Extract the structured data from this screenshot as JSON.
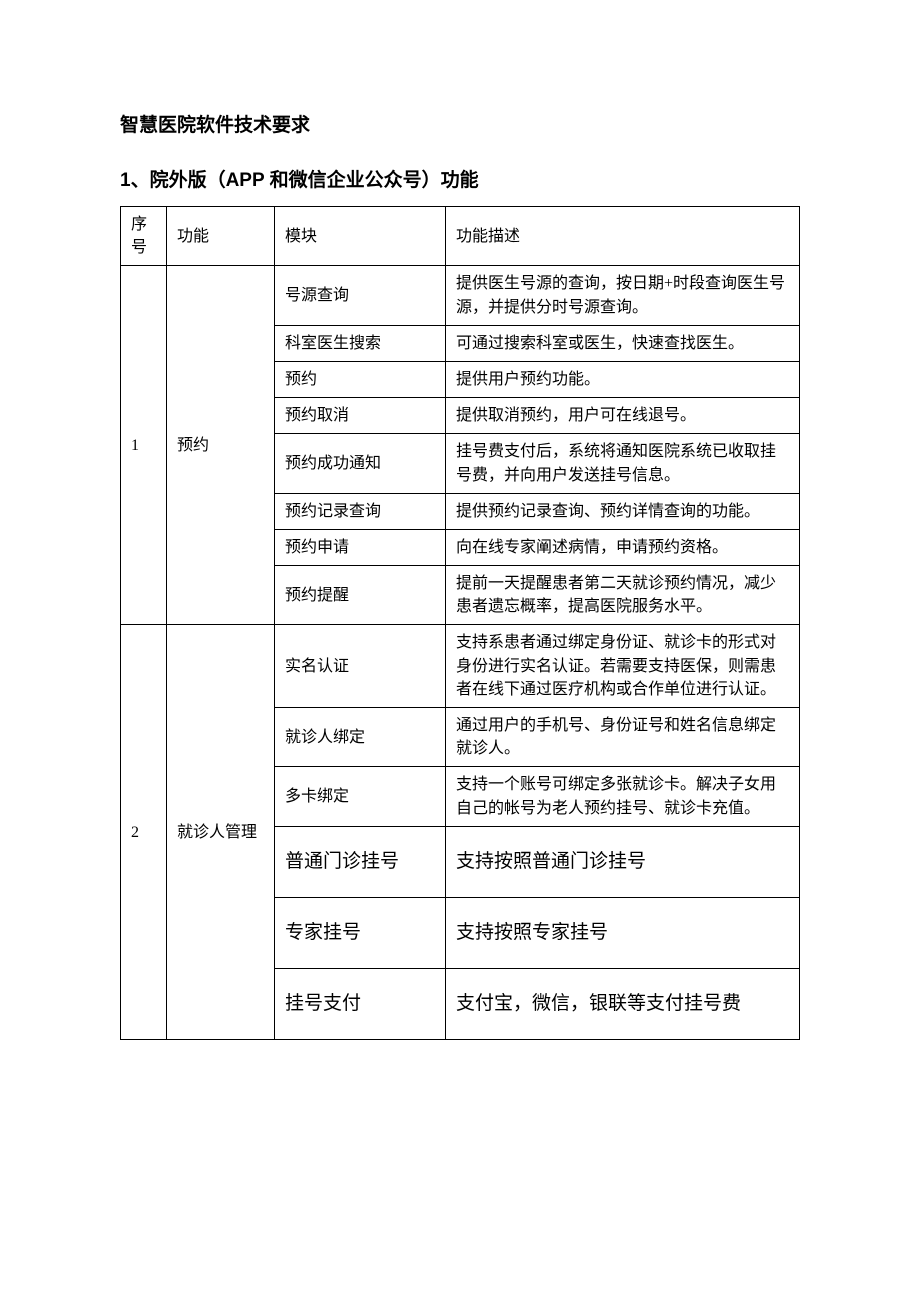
{
  "document": {
    "title": "智慧医院软件技术要求",
    "section_heading": "1、院外版（APP 和微信企业公众号）功能",
    "colors": {
      "text": "#000000",
      "background": "#ffffff",
      "border": "#000000"
    },
    "typography": {
      "title_fontsize": 19,
      "body_fontsize": 16,
      "large_row_fontsize": 19,
      "title_font": "SimHei",
      "body_font": "SimSun"
    },
    "table": {
      "headers": {
        "seq": "序号",
        "func": "功能",
        "module": "模块",
        "desc": "功能描述"
      },
      "groups": [
        {
          "seq": "1",
          "func": "预约",
          "rows": [
            {
              "module": "号源查询",
              "desc": "提供医生号源的查询，按日期+时段查询医生号源，并提供分时号源查询。",
              "style": "normal"
            },
            {
              "module": "科室医生搜索",
              "desc": "可通过搜索科室或医生，快速查找医生。",
              "style": "normal"
            },
            {
              "module": "预约",
              "desc": "提供用户预约功能。",
              "style": "normal"
            },
            {
              "module": "预约取消",
              "desc": "提供取消预约，用户可在线退号。",
              "style": "normal"
            },
            {
              "module": "预约成功通知",
              "desc": "挂号费支付后，系统将通知医院系统已收取挂号费，并向用户发送挂号信息。",
              "style": "normal"
            },
            {
              "module": "预约记录查询",
              "desc": "提供预约记录查询、预约详情查询的功能。",
              "style": "normal"
            },
            {
              "module": "预约申请",
              "desc": "向在线专家阐述病情，申请预约资格。",
              "style": "normal"
            },
            {
              "module": "预约提醒",
              "desc": "提前一天提醒患者第二天就诊预约情况，减少患者遗忘概率，提高医院服务水平。",
              "style": "normal"
            }
          ]
        },
        {
          "seq": "2",
          "func": "就诊人管理",
          "rows": [
            {
              "module": "实名认证",
              "desc": "支持系患者通过绑定身份证、就诊卡的形式对身份进行实名认证。若需要支持医保，则需患者在线下通过医疗机构或合作单位进行认证。",
              "style": "normal"
            },
            {
              "module": "就诊人绑定",
              "desc": "通过用户的手机号、身份证号和姓名信息绑定就诊人。",
              "style": "normal"
            },
            {
              "module": "多卡绑定",
              "desc": "支持一个账号可绑定多张就诊卡。解决子女用自己的帐号为老人预约挂号、就诊卡充值。",
              "style": "normal"
            },
            {
              "module": "普通门诊挂号",
              "desc": "支持按照普通门诊挂号",
              "style": "large"
            },
            {
              "module": "专家挂号",
              "desc": "支持按照专家挂号",
              "style": "large"
            },
            {
              "module": "挂号支付",
              "desc": "支付宝，微信，银联等支付挂号费",
              "style": "large"
            }
          ]
        }
      ]
    }
  }
}
